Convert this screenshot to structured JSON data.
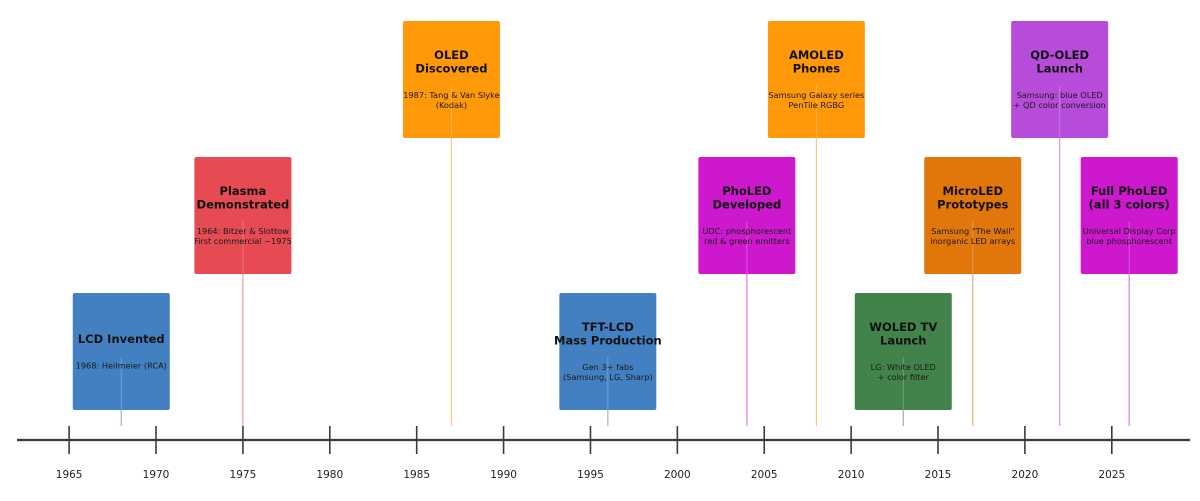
{
  "axis": {
    "year_min": 1962,
    "year_max": 2029.5,
    "ticks": [
      1965,
      1970,
      1975,
      1980,
      1985,
      1990,
      1995,
      2000,
      2005,
      2010,
      2015,
      2020,
      2025
    ]
  },
  "events": [
    {
      "id": "lcd-invented",
      "year": 1968,
      "tier": 1,
      "title": [
        "LCD Invented"
      ],
      "desc": [
        "1968: Heilmeier (RCA)"
      ],
      "color": "#3a7bbf"
    },
    {
      "id": "plasma-demonstrated",
      "year": 1975,
      "tier": 2,
      "title": [
        "Plasma",
        "Demonstrated"
      ],
      "desc": [
        "1964: Bitzer & Slottow",
        "First commercial ~1975"
      ],
      "color": "#e5434b"
    },
    {
      "id": "oled-discovered",
      "year": 1987,
      "tier": 3,
      "title": [
        "OLED",
        "Discovered"
      ],
      "desc": [
        "1987: Tang & Van Slyke",
        "(Kodak)"
      ],
      "color": "#ff9500"
    },
    {
      "id": "tft-lcd-mass-production",
      "year": 1996,
      "tier": 1,
      "title": [
        "TFT-LCD",
        "Mass Production"
      ],
      "desc": [
        "Gen 3+ fabs",
        "(Samsung, LG, Sharp)"
      ],
      "color": "#3a7bbf"
    },
    {
      "id": "pholed-developed",
      "year": 2004,
      "tier": 2,
      "title": [
        "PhoLED",
        "Developed"
      ],
      "desc": [
        "UDC: phosphorescent",
        "red & green emitters"
      ],
      "color": "#cc0fcc"
    },
    {
      "id": "amoled-phones",
      "year": 2008,
      "tier": 3,
      "title": [
        "AMOLED",
        "Phones"
      ],
      "desc": [
        "Samsung Galaxy series",
        "PenTile RGBG"
      ],
      "color": "#ff9500"
    },
    {
      "id": "woled-tv-launch",
      "year": 2013,
      "tier": 1,
      "title": [
        "WOLED TV",
        "Launch"
      ],
      "desc": [
        "LG: White OLED",
        "+ color filter"
      ],
      "color": "#3a7d44"
    },
    {
      "id": "microled-prototypes",
      "year": 2017,
      "tier": 2,
      "title": [
        "MicroLED",
        "Prototypes"
      ],
      "desc": [
        "Samsung \"The Wall\"",
        "inorganic LED arrays"
      ],
      "color": "#e07000"
    },
    {
      "id": "qd-oled-launch",
      "year": 2022,
      "tier": 3,
      "title": [
        "QD-OLED",
        "Launch"
      ],
      "desc": [
        "Samsung: blue OLED",
        "+ QD color conversion"
      ],
      "color": "#b545d8"
    },
    {
      "id": "full-pholed",
      "year": 2026,
      "tier": 2,
      "title": [
        "Full PhoLED",
        "(all 3 colors)"
      ],
      "desc": [
        "Universal Display Corp",
        "blue phosphorescent"
      ],
      "color": "#cc0fcc"
    }
  ]
}
